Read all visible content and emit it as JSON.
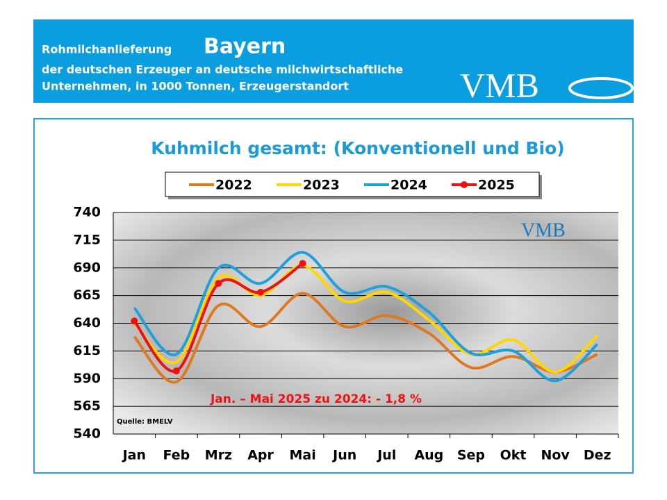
{
  "header": {
    "line1": "Rohmilchanlieferung",
    "region": "Bayern",
    "line2": "der deutschen Erzeuger an deutsche milchwirtschaftliche",
    "line3": "Unternehmen, in 1000 Tonnen, Erzeugerstandort",
    "logo": "VMB"
  },
  "chart_data": {
    "type": "line",
    "title": "Kuhmilch gesamt: (Konventionell und Bio)",
    "categories": [
      "Jan",
      "Feb",
      "Mrz",
      "Apr",
      "Mai",
      "Jun",
      "Jul",
      "Aug",
      "Sep",
      "Okt",
      "Nov",
      "Dez"
    ],
    "series": [
      {
        "name": "2022",
        "color": "#e07820",
        "values": [
          628,
          587,
          656,
          637,
          667,
          637,
          647,
          631,
          600,
          610,
          596,
          612
        ]
      },
      {
        "name": "2023",
        "color": "#ffd700",
        "values": [
          640,
          605,
          681,
          665,
          692,
          660,
          668,
          643,
          612,
          625,
          596,
          629
        ]
      },
      {
        "name": "2024",
        "color": "#1ea0dc",
        "values": [
          654,
          612,
          690,
          676,
          704,
          668,
          673,
          650,
          613,
          615,
          588,
          621
        ]
      },
      {
        "name": "2025",
        "color": "#ee1111",
        "values": [
          642,
          597,
          676,
          668,
          694,
          null,
          null,
          null,
          null,
          null,
          null,
          null
        ],
        "markers": true
      }
    ],
    "ylim": [
      540,
      740
    ],
    "yticks": [
      540,
      565,
      590,
      615,
      640,
      665,
      690,
      715,
      740
    ],
    "grid": true,
    "annotation": "Jan. – Mai 2025 zu 2024: - 1,8 %",
    "source": "Quelle:  BMELV",
    "watermark": "VMB"
  }
}
